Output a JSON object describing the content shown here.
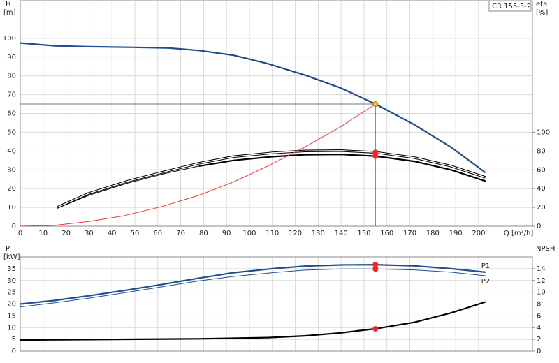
{
  "chart_data": [
    {
      "type": "line",
      "title": "CR 155-3-2",
      "y_label": "H",
      "y_unit": "[m]",
      "y2_label": "eta",
      "y2_unit": "[%]",
      "x_label": "Q [m³/h]",
      "xlim": [
        0,
        223.5
      ],
      "xticks": [
        0,
        10,
        20,
        30,
        40,
        50,
        60,
        70,
        80,
        90,
        100,
        110,
        120,
        130,
        140,
        150,
        160,
        170,
        180,
        190,
        200
      ],
      "ylim": [
        0,
        120
      ],
      "yticks": [
        0,
        10,
        20,
        30,
        40,
        50,
        60,
        70,
        80,
        90,
        100
      ],
      "y2lim": [
        0,
        240
      ],
      "y2ticks": [
        0,
        20,
        40,
        60,
        80,
        100
      ],
      "grid": true,
      "crosshair": {
        "x": 155,
        "y": 65
      },
      "series": [
        {
          "color": "#1f4e8c",
          "style": "thick",
          "axis": "y",
          "x": [
            0,
            15,
            30,
            50,
            65,
            78,
            93,
            108,
            124,
            140,
            155,
            172,
            188,
            203
          ],
          "values": [
            97.5,
            96,
            95.5,
            95.2,
            94.8,
            93.5,
            91,
            86.5,
            80.5,
            73.5,
            65,
            54,
            42,
            28.5
          ]
        },
        {
          "color": "#000000",
          "style": "double",
          "axis": "y2",
          "x": [
            16,
            30,
            47,
            63,
            78,
            93,
            110,
            124,
            140,
            155,
            172,
            188,
            203
          ],
          "values": [
            20,
            35,
            48,
            58,
            67,
            74,
            78,
            80,
            80.4,
            78.6,
            73,
            64,
            52
          ]
        },
        {
          "color": "#000000",
          "style": "thin",
          "axis": "y2",
          "x": [
            16,
            30,
            47,
            63,
            78
          ],
          "values": [
            19,
            33,
            46,
            56,
            64
          ]
        },
        {
          "color": "#000000",
          "style": "thick",
          "axis": "y2",
          "x": [
            78,
            93,
            110,
            124,
            140,
            155,
            172,
            188,
            203
          ],
          "values": [
            64,
            70,
            74,
            76,
            76.4,
            74.6,
            69,
            60,
            48
          ]
        },
        {
          "color": "#ff3030",
          "style": "thin",
          "axis": "y",
          "x": [
            0,
            15,
            30,
            45,
            62,
            78,
            93,
            108,
            124,
            140,
            155
          ],
          "values": [
            0,
            0.5,
            2.5,
            5.5,
            10.5,
            16.5,
            23.5,
            32,
            42,
            53,
            65
          ]
        }
      ],
      "markers": [
        {
          "x": 155,
          "y": 65,
          "axis": "y",
          "color": "#f5c518"
        },
        {
          "x": 155,
          "y": 78.6,
          "axis": "y2",
          "color": "#ff2020"
        },
        {
          "x": 155,
          "y": 74.6,
          "axis": "y2",
          "color": "#ff2020"
        }
      ]
    },
    {
      "type": "line",
      "y_label": "P",
      "y_unit": "[kW]",
      "y2_label": "NPSH",
      "xlim": [
        0,
        223.5
      ],
      "xticks": [
        0,
        10,
        20,
        30,
        40,
        50,
        60,
        70,
        80,
        90,
        100,
        110,
        120,
        130,
        140,
        150,
        160,
        170,
        180,
        190,
        200
      ],
      "ylim": [
        0,
        40
      ],
      "yticks": [
        0,
        5,
        10,
        15,
        20,
        25,
        30,
        35
      ],
      "y2lim": [
        0,
        16
      ],
      "y2ticks": [
        0,
        2,
        4,
        6,
        8,
        10,
        12,
        14
      ],
      "grid": true,
      "series": [
        {
          "name": "P1",
          "color": "#1f4e8c",
          "style": "thick",
          "axis": "y",
          "x": [
            0,
            15,
            30,
            47,
            63,
            78,
            93,
            110,
            124,
            140,
            155,
            172,
            188,
            203
          ],
          "values": [
            20,
            21.5,
            23.5,
            26,
            28.5,
            31,
            33.3,
            35,
            36.1,
            36.6,
            36.7,
            36.2,
            35,
            33.5
          ]
        },
        {
          "name": "P2",
          "color": "#1f4e8c",
          "style": "thin",
          "axis": "y",
          "x": [
            0,
            15,
            30,
            47,
            63,
            78,
            93,
            110,
            124,
            140,
            155,
            172,
            188,
            203
          ],
          "values": [
            18.8,
            20.5,
            22.5,
            25,
            27.5,
            29.8,
            31.7,
            33.3,
            34.4,
            34.9,
            34.9,
            34.5,
            33.5,
            32
          ]
        },
        {
          "color": "#000000",
          "style": "thick",
          "axis": "y2",
          "x": [
            0,
            78,
            108,
            124,
            140,
            155,
            172,
            188,
            203
          ],
          "values": [
            1.9,
            2.1,
            2.3,
            2.6,
            3.1,
            3.8,
            4.9,
            6.5,
            8.35
          ]
        }
      ],
      "markers": [
        {
          "x": 155,
          "y": 36.7,
          "axis": "y",
          "color": "#ff2020"
        },
        {
          "x": 155,
          "y": 34.9,
          "axis": "y",
          "color": "#ff2020"
        },
        {
          "x": 155,
          "y": 3.8,
          "axis": "y2",
          "color": "#ff2020"
        }
      ]
    }
  ]
}
